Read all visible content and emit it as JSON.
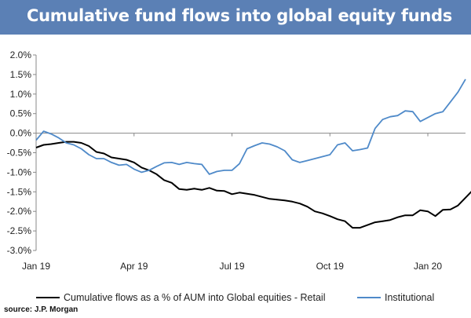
{
  "header": {
    "title": "Cumulative fund flows into global equity funds"
  },
  "source": "source: J.P. Morgan",
  "chart_data": {
    "type": "line",
    "title": "Cumulative fund flows into global equity funds",
    "xlabel": "",
    "ylabel": "",
    "ylim": [
      -3.0,
      2.0
    ],
    "y_ticks": [
      2.0,
      1.5,
      1.0,
      0.5,
      0.0,
      -0.5,
      -1.0,
      -1.5,
      -2.0,
      -2.5,
      -3.0
    ],
    "y_tick_labels": [
      "2.0%",
      "1.5%",
      "1.0%",
      "0.5%",
      "0.0%",
      "-0.5%",
      "-1.0%",
      "-1.5%",
      "-2.0%",
      "-2.5%",
      "-3.0%"
    ],
    "x_range": [
      0,
      57
    ],
    "x_ticks": [
      0,
      13,
      26,
      39,
      52
    ],
    "x_tick_labels": [
      "Jan 19",
      "Apr 19",
      "Jul 19",
      "Oct 19",
      "Jan 20"
    ],
    "grid": "horizontal zero line only",
    "legend_position": "bottom",
    "series": [
      {
        "name": "Cumulative flows as a  % of AUM into Global equities - Retail",
        "color": "#000000",
        "values": [
          -0.37,
          -0.3,
          -0.28,
          -0.25,
          -0.22,
          -0.22,
          -0.25,
          -0.33,
          -0.48,
          -0.52,
          -0.62,
          -0.65,
          -0.68,
          -0.75,
          -0.88,
          -0.95,
          -1.05,
          -1.2,
          -1.27,
          -1.43,
          -1.45,
          -1.42,
          -1.45,
          -1.4,
          -1.47,
          -1.48,
          -1.56,
          -1.52,
          -1.55,
          -1.58,
          -1.63,
          -1.68,
          -1.7,
          -1.72,
          -1.75,
          -1.8,
          -1.88,
          -2.0,
          -2.05,
          -2.12,
          -2.2,
          -2.25,
          -2.42,
          -2.42,
          -2.35,
          -2.28,
          -2.25,
          -2.22,
          -2.15,
          -2.1,
          -2.1,
          -1.97,
          -2.0,
          -2.12,
          -1.96,
          -1.95,
          -1.85,
          -1.65,
          -1.45,
          -1.25
        ]
      },
      {
        "name": "Institutional",
        "color": "#4f8ac9",
        "values": [
          -0.18,
          0.05,
          -0.02,
          -0.12,
          -0.25,
          -0.3,
          -0.4,
          -0.55,
          -0.65,
          -0.65,
          -0.75,
          -0.82,
          -0.8,
          -0.92,
          -1.0,
          -0.95,
          -0.85,
          -0.76,
          -0.75,
          -0.8,
          -0.75,
          -0.78,
          -0.8,
          -1.05,
          -0.98,
          -0.95,
          -0.95,
          -0.78,
          -0.4,
          -0.32,
          -0.25,
          -0.28,
          -0.35,
          -0.45,
          -0.68,
          -0.75,
          -0.7,
          -0.65,
          -0.6,
          -0.55,
          -0.3,
          -0.25,
          -0.45,
          -0.42,
          -0.38,
          0.12,
          0.35,
          0.42,
          0.45,
          0.57,
          0.55,
          0.3,
          0.4,
          0.5,
          0.55,
          0.8,
          1.05,
          1.38
        ]
      }
    ]
  },
  "legend": {
    "retail_label": "Cumulative flows as a  % of AUM into Global equities - Retail",
    "institutional_label": "Institutional"
  }
}
